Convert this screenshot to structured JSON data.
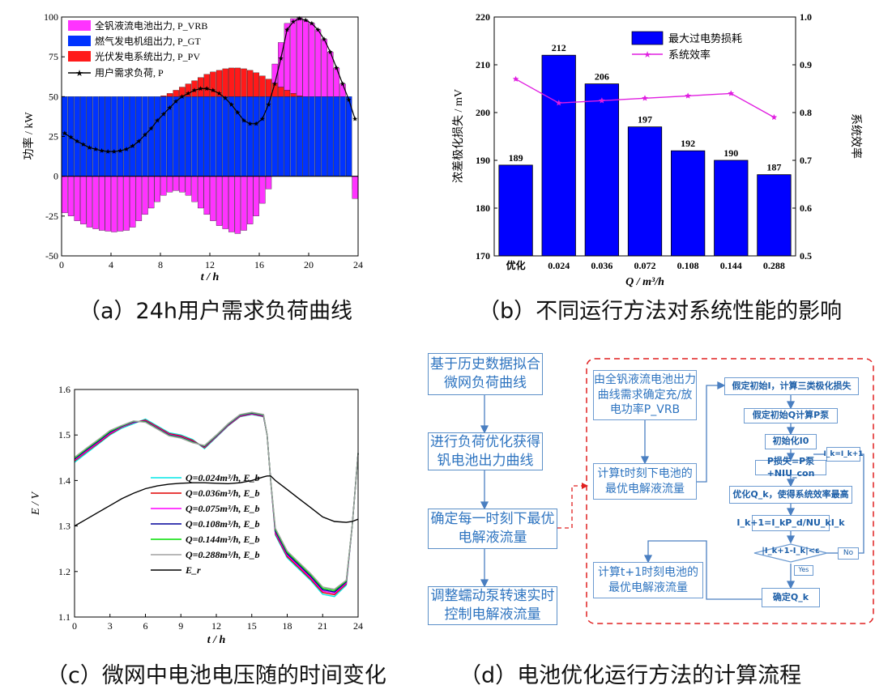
{
  "captions": {
    "a": "（a）24h用户需求负荷曲线",
    "b": "（b）不同运行方法对系统性能的影响",
    "c": "（c）微网中电池电压随的时间变化",
    "d": "（d）电池优化运行方法的计算流程"
  },
  "chart_data": [
    {
      "id": "a",
      "type": "bar",
      "xlabel": "t / h",
      "ylabel": "功率 / kW",
      "xlim": [
        0,
        24
      ],
      "ylim": [
        -50,
        100
      ],
      "xticks": [
        0,
        4,
        8,
        12,
        16,
        20,
        24
      ],
      "yticks": [
        -50,
        -25,
        0,
        25,
        50,
        75,
        100
      ],
      "legend": [
        "全钒液流电池出力, P_VRB",
        "燃气发电机组出力, P_GT",
        "光伏发电系统出力, P_PV",
        "用户需求负荷, P"
      ],
      "colors": {
        "vrb": "#ff33ff",
        "gt": "#0033ff",
        "pv": "#ff1a1a",
        "load": "#000000"
      },
      "t": [
        0,
        0.5,
        1,
        1.5,
        2,
        2.5,
        3,
        3.5,
        4,
        4.5,
        5,
        5.5,
        6,
        6.5,
        7,
        7.5,
        8,
        8.5,
        9,
        9.5,
        10,
        10.5,
        11,
        11.5,
        12,
        12.5,
        13,
        13.5,
        14,
        14.5,
        15,
        15.5,
        16,
        16.5,
        17,
        17.5,
        18,
        18.5,
        19,
        19.5,
        20,
        20.5,
        21,
        21.5,
        22,
        22.5,
        23,
        23.5
      ],
      "gt": [
        50,
        50,
        50,
        50,
        50,
        50,
        50,
        50,
        50,
        50,
        50,
        50,
        50,
        50,
        50,
        50,
        50,
        50,
        50,
        50,
        50,
        50,
        50,
        50,
        50,
        50,
        50,
        50,
        50,
        50,
        50,
        50,
        50,
        50,
        50,
        50,
        50,
        50,
        50,
        50,
        50,
        50,
        50,
        50,
        50,
        50,
        50,
        -8
      ],
      "pv": [
        0,
        0,
        0,
        0,
        0,
        0,
        0,
        0,
        0,
        0,
        0,
        0,
        0,
        0,
        0,
        0,
        0.5,
        2,
        4,
        6,
        8,
        10,
        12,
        14,
        15.5,
        16.5,
        17.5,
        18,
        18,
        17.5,
        16.5,
        15,
        13,
        11,
        8.5,
        6,
        4,
        2,
        0.5,
        0,
        0,
        0,
        0,
        0,
        0,
        0,
        0,
        0
      ],
      "vrb": [
        -23,
        -25,
        -28,
        -30,
        -32,
        -33,
        -34,
        -34.5,
        -35,
        -34.5,
        -34,
        -32,
        -28,
        -24,
        -20,
        -16,
        -12,
        -10,
        -9,
        -10,
        -12,
        -16,
        -20,
        -24,
        -28,
        -31,
        -33,
        -35,
        -36,
        -34,
        -30,
        -25,
        -17,
        -8,
        12,
        28,
        42,
        47,
        49,
        48,
        46,
        42,
        36,
        28,
        18,
        8,
        0,
        -14
      ],
      "load": [
        27,
        24.5,
        22,
        20,
        18,
        17,
        16,
        15.5,
        15.5,
        16,
        17,
        19,
        22,
        26,
        30,
        35,
        39,
        43,
        47,
        50,
        52,
        54,
        55,
        55,
        54,
        52,
        49,
        45,
        40,
        35,
        33,
        33,
        36,
        45,
        58,
        74,
        92,
        97,
        99,
        98,
        96,
        92,
        86,
        78,
        68,
        58,
        48,
        36
      ]
    },
    {
      "id": "b",
      "type": "bar",
      "xlabel": "Q / m³/h",
      "ylabel": "浓差极化损失 / mV",
      "ylabel2": "系统效率",
      "categories": [
        "优化",
        "0.024",
        "0.036",
        "0.072",
        "0.108",
        "0.144",
        "0.288"
      ],
      "bar_series": {
        "name": "最大过电势损耗",
        "values": [
          189,
          212,
          206,
          197,
          192,
          190,
          187
        ],
        "color": "#0000ff"
      },
      "line_series": {
        "name": "系统效率",
        "values": [
          0.87,
          0.82,
          0.825,
          0.83,
          0.835,
          0.84,
          0.79
        ],
        "color": "#e01ee0"
      },
      "ylim": [
        170,
        220
      ],
      "yticks": [
        170,
        180,
        190,
        200,
        210,
        220
      ],
      "y2lim": [
        0.5,
        1.0
      ],
      "y2ticks": [
        "0.5",
        "0.6",
        "0.7",
        "0.8",
        "0.9",
        "1.0"
      ]
    },
    {
      "id": "c",
      "type": "line",
      "xlabel": "t / h",
      "ylabel": "E / V",
      "xlim": [
        0,
        24
      ],
      "ylim": [
        1.1,
        1.6
      ],
      "xticks": [
        0,
        3,
        6,
        9,
        12,
        15,
        18,
        21,
        24
      ],
      "yticks": [
        "1.1",
        "1.2",
        "1.3",
        "1.4",
        "1.5",
        "1.6"
      ],
      "x": [
        0,
        1,
        2,
        3,
        4,
        5,
        6,
        7,
        8,
        9,
        10,
        11,
        12,
        13,
        14,
        15,
        16,
        16.3,
        16.6,
        17,
        18,
        19,
        20,
        21,
        22,
        23,
        23.5,
        24
      ],
      "series": [
        {
          "name": "Q=0.024m³/h, E_b",
          "color": "#00e5e5",
          "values": [
            1.44,
            1.46,
            1.48,
            1.5,
            1.515,
            1.525,
            1.535,
            1.52,
            1.505,
            1.5,
            1.49,
            1.47,
            1.495,
            1.52,
            1.54,
            1.545,
            1.54,
            1.5,
            1.4,
            1.28,
            1.23,
            1.205,
            1.18,
            1.15,
            1.145,
            1.17,
            1.3,
            1.46
          ]
        },
        {
          "name": "Q=0.036m³/h, E_b",
          "color": "#e00000",
          "values": [
            1.443,
            1.463,
            1.482,
            1.502,
            1.517,
            1.527,
            1.533,
            1.518,
            1.503,
            1.498,
            1.488,
            1.472,
            1.496,
            1.521,
            1.541,
            1.546,
            1.541,
            1.5,
            1.4,
            1.283,
            1.233,
            1.208,
            1.183,
            1.154,
            1.149,
            1.173,
            1.3,
            1.46
          ]
        },
        {
          "name": "Q=0.075m³/h, E_b",
          "color": "#ff00ff",
          "values": [
            1.445,
            1.465,
            1.484,
            1.504,
            1.518,
            1.528,
            1.531,
            1.516,
            1.501,
            1.496,
            1.486,
            1.474,
            1.497,
            1.522,
            1.542,
            1.547,
            1.542,
            1.5,
            1.4,
            1.286,
            1.236,
            1.211,
            1.186,
            1.157,
            1.152,
            1.175,
            1.3,
            1.46
          ]
        },
        {
          "name": "Q=0.108m³/h, E_b",
          "color": "#000099",
          "values": [
            1.447,
            1.467,
            1.486,
            1.506,
            1.519,
            1.529,
            1.53,
            1.515,
            1.5,
            1.495,
            1.485,
            1.475,
            1.498,
            1.523,
            1.543,
            1.548,
            1.543,
            1.5,
            1.4,
            1.289,
            1.239,
            1.214,
            1.189,
            1.16,
            1.155,
            1.177,
            1.3,
            1.46
          ]
        },
        {
          "name": "Q=0.144m³/h, E_b",
          "color": "#00dd00",
          "values": [
            1.449,
            1.469,
            1.488,
            1.508,
            1.52,
            1.53,
            1.529,
            1.514,
            1.499,
            1.494,
            1.484,
            1.476,
            1.499,
            1.524,
            1.544,
            1.549,
            1.544,
            1.5,
            1.4,
            1.292,
            1.242,
            1.217,
            1.192,
            1.163,
            1.158,
            1.179,
            1.3,
            1.46
          ]
        },
        {
          "name": "Q=0.288m³/h, E_b",
          "color": "#a0a0a0",
          "values": [
            1.451,
            1.471,
            1.49,
            1.51,
            1.521,
            1.531,
            1.528,
            1.513,
            1.498,
            1.493,
            1.483,
            1.477,
            1.5,
            1.525,
            1.545,
            1.55,
            1.545,
            1.5,
            1.4,
            1.295,
            1.245,
            1.22,
            1.195,
            1.166,
            1.161,
            1.181,
            1.3,
            1.46
          ]
        },
        {
          "name": "E_r",
          "color": "#000000",
          "values": [
            1.3,
            1.315,
            1.33,
            1.345,
            1.36,
            1.372,
            1.382,
            1.388,
            1.392,
            1.394,
            1.395,
            1.395,
            1.394,
            1.393,
            1.395,
            1.4,
            1.408,
            1.41,
            1.41,
            1.4,
            1.38,
            1.36,
            1.34,
            1.32,
            1.31,
            1.308,
            1.31,
            1.315
          ]
        }
      ]
    }
  ],
  "flowchart": {
    "left_steps": [
      "基于历史数据拟合微网负荷曲线",
      "进行负荷优化获得钒电池出力曲线",
      "确定每一时刻下最优电解液流量",
      "调整蠕动泵转速实时控制电解液流量"
    ],
    "mid_steps": [
      "由全钒液流电池出力曲线需求确定充/放电功率P_VRB",
      "计算t时刻下电池的最优电解液流量",
      "计算t+1时刻电池的最优电解液流量"
    ],
    "right_steps": [
      "假定初始I，计算三类极化损失",
      "假定初始Q计算P泵",
      "初始化I0",
      "P损失=P泵+NIU_con",
      "优化Q_k，使得系统效率最高",
      "I_k+1=I_kP_d/NU_kI_k",
      "|I_k+1-I_k|<ε",
      "确定Q_k"
    ],
    "side_box": "I_k=I_k+1",
    "labels": {
      "no": "No",
      "yes": "Yes"
    }
  }
}
